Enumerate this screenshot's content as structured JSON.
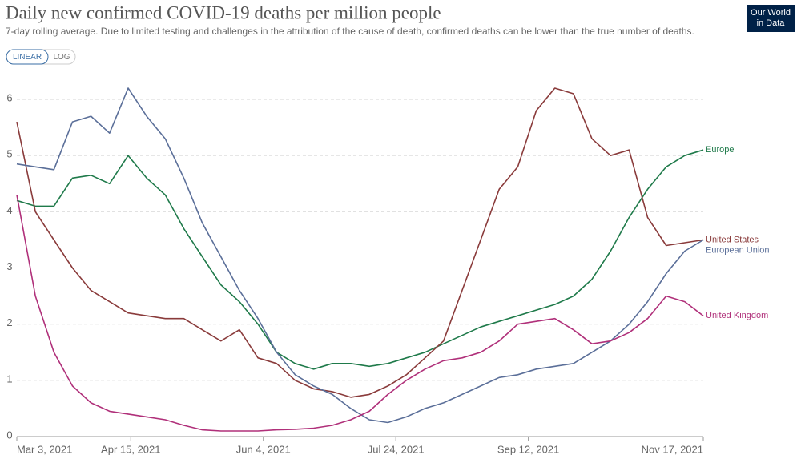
{
  "chart_data": {
    "type": "line",
    "title": "Daily new confirmed COVID-19 deaths per million people",
    "subtitle": "7-day rolling average. Due to limited testing and challenges in the attribution of the cause of death, confirmed deaths can be lower than the true number of deaths.",
    "logo": [
      "Our World",
      "in Data"
    ],
    "scale_buttons": [
      "LINEAR",
      "LOG"
    ],
    "log_scale": false,
    "grid": true,
    "x": [
      "2021-03-03",
      "2021-03-10",
      "2021-03-17",
      "2021-03-24",
      "2021-03-31",
      "2021-04-07",
      "2021-04-14",
      "2021-04-21",
      "2021-04-28",
      "2021-05-05",
      "2021-05-12",
      "2021-05-19",
      "2021-05-26",
      "2021-06-02",
      "2021-06-09",
      "2021-06-16",
      "2021-06-23",
      "2021-06-30",
      "2021-07-07",
      "2021-07-14",
      "2021-07-21",
      "2021-07-28",
      "2021-08-04",
      "2021-08-11",
      "2021-08-18",
      "2021-08-25",
      "2021-09-01",
      "2021-09-08",
      "2021-09-15",
      "2021-09-22",
      "2021-09-29",
      "2021-10-06",
      "2021-10-13",
      "2021-10-20",
      "2021-10-27",
      "2021-11-03",
      "2021-11-10",
      "2021-11-17"
    ],
    "xlim": [
      "2021-03-03",
      "2021-11-17"
    ],
    "xticks": [
      {
        "value": "2021-03-03",
        "label": "Mar 3, 2021"
      },
      {
        "value": "2021-04-15",
        "label": "Apr 15, 2021"
      },
      {
        "value": "2021-06-04",
        "label": "Jun 4, 2021"
      },
      {
        "value": "2021-07-24",
        "label": "Jul 24, 2021"
      },
      {
        "value": "2021-09-12",
        "label": "Sep 12, 2021"
      },
      {
        "value": "2021-11-17",
        "label": "Nov 17, 2021"
      }
    ],
    "ylim": [
      0,
      6.4
    ],
    "yticks": [
      0,
      1,
      2,
      3,
      4,
      5,
      6
    ],
    "series": [
      {
        "name": "Europe",
        "color": "#1f7a4a",
        "values": [
          4.2,
          4.1,
          4.1,
          4.6,
          4.65,
          4.5,
          5.0,
          4.6,
          4.3,
          3.7,
          3.2,
          2.7,
          2.4,
          2.0,
          1.5,
          1.3,
          1.2,
          1.3,
          1.3,
          1.25,
          1.3,
          1.4,
          1.5,
          1.65,
          1.8,
          1.95,
          2.05,
          2.15,
          2.25,
          2.35,
          2.5,
          2.8,
          3.3,
          3.9,
          4.4,
          4.8,
          5.0,
          5.1
        ]
      },
      {
        "name": "United States",
        "color": "#8a3b3b",
        "values": [
          5.6,
          4.0,
          3.5,
          3.0,
          2.6,
          2.4,
          2.2,
          2.15,
          2.1,
          2.1,
          1.9,
          1.7,
          1.9,
          1.4,
          1.3,
          1.0,
          0.85,
          0.8,
          0.7,
          0.75,
          0.9,
          1.1,
          1.4,
          1.7,
          2.6,
          3.5,
          4.4,
          4.8,
          5.8,
          6.2,
          6.1,
          5.3,
          5.0,
          5.1,
          3.9,
          3.4,
          3.45,
          3.5
        ]
      },
      {
        "name": "European Union",
        "color": "#5b6f99",
        "values": [
          4.85,
          4.8,
          4.75,
          5.6,
          5.7,
          5.4,
          6.2,
          5.7,
          5.3,
          4.6,
          3.8,
          3.2,
          2.6,
          2.1,
          1.5,
          1.1,
          0.9,
          0.75,
          0.5,
          0.3,
          0.25,
          0.35,
          0.5,
          0.6,
          0.75,
          0.9,
          1.05,
          1.1,
          1.2,
          1.25,
          1.3,
          1.5,
          1.7,
          2.0,
          2.4,
          2.9,
          3.3,
          3.5
        ]
      },
      {
        "name": "United Kingdom",
        "color": "#b0307a",
        "values": [
          4.3,
          2.5,
          1.5,
          0.9,
          0.6,
          0.45,
          0.4,
          0.35,
          0.3,
          0.2,
          0.12,
          0.1,
          0.1,
          0.1,
          0.12,
          0.13,
          0.15,
          0.2,
          0.3,
          0.45,
          0.75,
          1.0,
          1.2,
          1.35,
          1.4,
          1.5,
          1.7,
          2.0,
          2.05,
          2.1,
          1.9,
          1.65,
          1.7,
          1.85,
          2.1,
          2.5,
          2.4,
          2.15
        ]
      }
    ]
  }
}
